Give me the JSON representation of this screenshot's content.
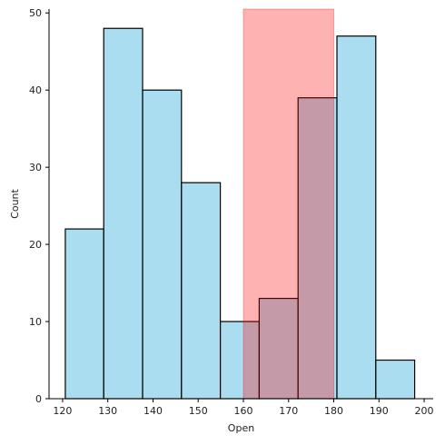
{
  "chart_data": {
    "type": "bar",
    "xlabel": "Open",
    "ylabel": "Count",
    "xlim": [
      117,
      202
    ],
    "ylim": [
      0,
      50.5
    ],
    "x_ticks": [
      120,
      130,
      140,
      150,
      160,
      170,
      180,
      190,
      200
    ],
    "y_ticks": [
      0,
      10,
      20,
      30,
      40,
      50
    ],
    "bins": [
      {
        "x0": 120.6,
        "x1": 129.1,
        "count": 22
      },
      {
        "x0": 129.1,
        "x1": 137.7,
        "count": 48
      },
      {
        "x0": 137.7,
        "x1": 146.3,
        "count": 40
      },
      {
        "x0": 146.3,
        "x1": 154.9,
        "count": 28
      },
      {
        "x0": 154.9,
        "x1": 163.5,
        "count": 10
      },
      {
        "x0": 163.5,
        "x1": 172.1,
        "count": 13
      },
      {
        "x0": 172.1,
        "x1": 180.7,
        "count": 39
      },
      {
        "x0": 180.7,
        "x1": 189.3,
        "count": 47
      },
      {
        "x0": 189.3,
        "x1": 197.9,
        "count": 5
      }
    ],
    "highlight_span": {
      "x0": 160,
      "x1": 180
    },
    "grid": false,
    "colors": {
      "bar_fill": "#87ceeb",
      "bar_stroke": "#000000",
      "highlight_fill": "#ff0000",
      "axis": "#000000",
      "text": "#222222"
    }
  }
}
